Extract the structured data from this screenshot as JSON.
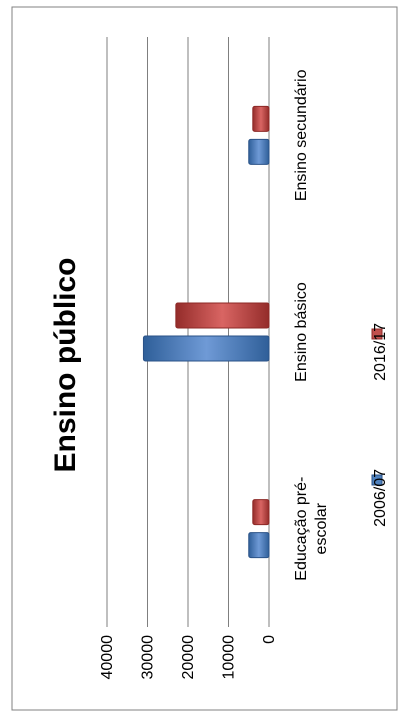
{
  "chart_data": {
    "type": "bar",
    "orientation": "rotated-90-ccw",
    "title": "Ensino público",
    "xlabel": "",
    "ylabel": "",
    "categories": [
      "Educação pré-escolar",
      "Ensino básico",
      "Ensino secundário"
    ],
    "category_label_lines": [
      [
        "Educação pré-",
        "escolar"
      ],
      [
        "Ensino básico"
      ],
      [
        "Ensino secundário"
      ]
    ],
    "series": [
      {
        "name": "2006/07",
        "values": [
          5000,
          31000,
          5000
        ],
        "color": "#4f81bd"
      },
      {
        "name": "2016/17",
        "values": [
          4000,
          23000,
          4000
        ],
        "color": "#c0504d"
      }
    ],
    "ylim": [
      0,
      40000
    ],
    "yticks": [
      "0",
      "10000",
      "20000",
      "30000",
      "40000"
    ],
    "grid": true,
    "legend_position": "bottom"
  }
}
